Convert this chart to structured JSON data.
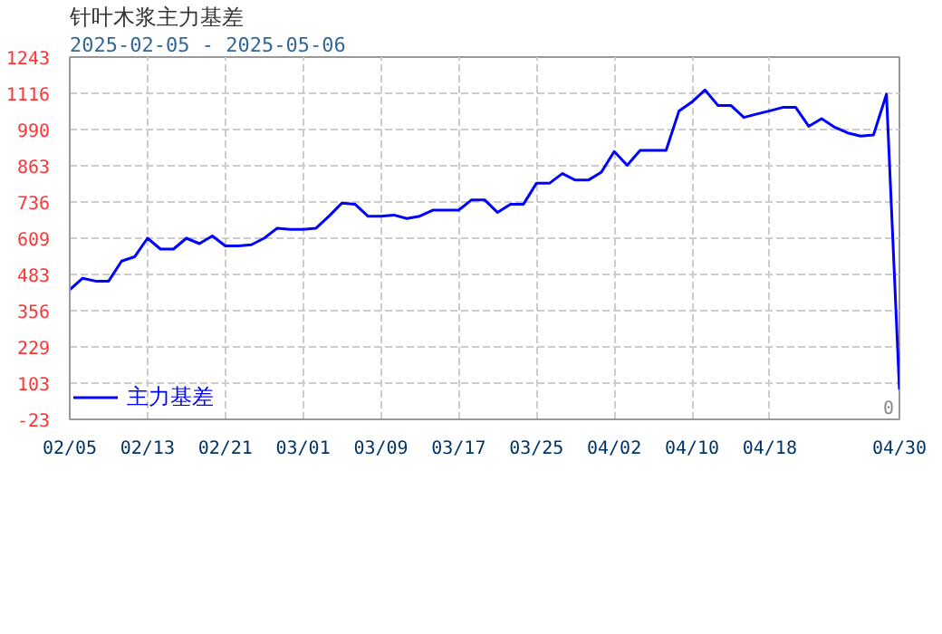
{
  "chart_data": {
    "type": "line",
    "title": "针叶木浆主力基差",
    "subtitle": "2025-02-05 - 2025-05-06",
    "categories": [
      "02/05",
      null,
      null,
      null,
      null,
      null,
      "02/13",
      null,
      null,
      null,
      null,
      null,
      "02/21",
      null,
      null,
      null,
      null,
      null,
      "03/01",
      null,
      null,
      null,
      null,
      null,
      "03/09",
      null,
      null,
      null,
      null,
      null,
      "03/17",
      null,
      null,
      null,
      null,
      null,
      "03/25",
      null,
      null,
      null,
      null,
      null,
      "04/02",
      null,
      null,
      null,
      null,
      null,
      "04/10",
      null,
      null,
      null,
      null,
      null,
      "04/18",
      null,
      null,
      null,
      null,
      null,
      null,
      null,
      null,
      null,
      "04/30"
    ],
    "series": [
      {
        "name": "主力基差",
        "color": "#0000ff",
        "values": [
          430,
          470,
          460,
          460,
          530,
          545,
          610,
          572,
          572,
          610,
          591,
          618,
          583,
          583,
          587,
          610,
          645,
          641,
          641,
          645,
          687,
          733,
          729,
          687,
          687,
          691,
          679,
          687,
          708,
          708,
          708,
          744,
          744,
          700,
          729,
          729,
          802,
          802,
          836,
          813,
          813,
          840,
          913,
          865,
          917,
          917,
          917,
          1055,
          1086,
          1128,
          1074,
          1074,
          1032,
          1044,
          1055,
          1067,
          1067,
          1001,
          1028,
          998,
          978,
          967,
          971,
          1113,
          81
        ]
      }
    ],
    "ylim": [
      -23,
      1243
    ],
    "yticks": [
      -23,
      103,
      229,
      356,
      483,
      609,
      736,
      863,
      990,
      1116,
      1243
    ],
    "annotations": [
      "0"
    ],
    "grid": true,
    "legend": "bottom left",
    "marker": "none",
    "line_style": "solid"
  }
}
